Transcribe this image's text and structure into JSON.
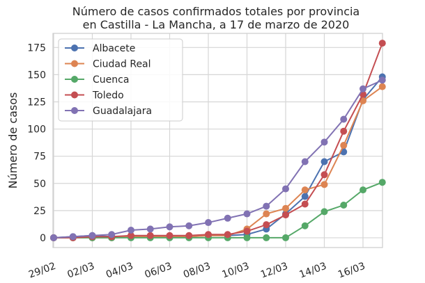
{
  "chart_data": {
    "type": "line",
    "title": "Número de casos confirmados totales por provincia\nen Castilla - La Mancha, a 17 de marzo de 2020",
    "title_lines": [
      "Número de casos confirmados totales por provincia",
      "en Castilla - La Mancha, a 17 de marzo de 2020"
    ],
    "xlabel": "",
    "ylabel": "Número de casos",
    "x": [
      "29/02",
      "01/03",
      "02/03",
      "03/03",
      "04/03",
      "05/03",
      "06/03",
      "07/03",
      "08/03",
      "09/03",
      "10/03",
      "11/03",
      "12/03",
      "13/03",
      "14/03",
      "15/03",
      "16/03",
      "17/03"
    ],
    "xticks": [
      "29/02",
      "02/03",
      "04/03",
      "06/03",
      "08/03",
      "10/03",
      "12/03",
      "14/03",
      "16/03"
    ],
    "yticks": [
      0,
      25,
      50,
      75,
      100,
      125,
      150,
      175
    ],
    "ylim": [
      -9,
      188
    ],
    "grid": true,
    "legend_position": "top-left",
    "series": [
      {
        "name": "Albacete",
        "color": "#4c72b0",
        "values": [
          0,
          1,
          2,
          1,
          1,
          1,
          1,
          1,
          2,
          2,
          3,
          8,
          22,
          38,
          70,
          79,
          127,
          148
        ]
      },
      {
        "name": "Ciudad Real",
        "color": "#dd8452",
        "values": [
          0,
          0,
          0,
          0,
          1,
          1,
          1,
          1,
          2,
          2,
          8,
          22,
          27,
          44,
          49,
          85,
          126,
          139
        ]
      },
      {
        "name": "Cuenca",
        "color": "#55a868",
        "values": [
          0,
          0,
          0,
          0,
          0,
          0,
          0,
          0,
          0,
          0,
          0,
          0,
          0,
          11,
          24,
          30,
          44,
          51
        ]
      },
      {
        "name": "Toledo",
        "color": "#c44e52",
        "values": [
          0,
          0,
          1,
          1,
          2,
          2,
          2,
          2,
          3,
          3,
          6,
          12,
          21,
          31,
          58,
          98,
          132,
          179
        ]
      },
      {
        "name": "Guadalajara",
        "color": "#8172b3",
        "values": [
          0,
          1,
          2,
          3,
          7,
          8,
          10,
          11,
          14,
          18,
          22,
          29,
          45,
          70,
          88,
          109,
          137,
          145
        ]
      }
    ]
  }
}
